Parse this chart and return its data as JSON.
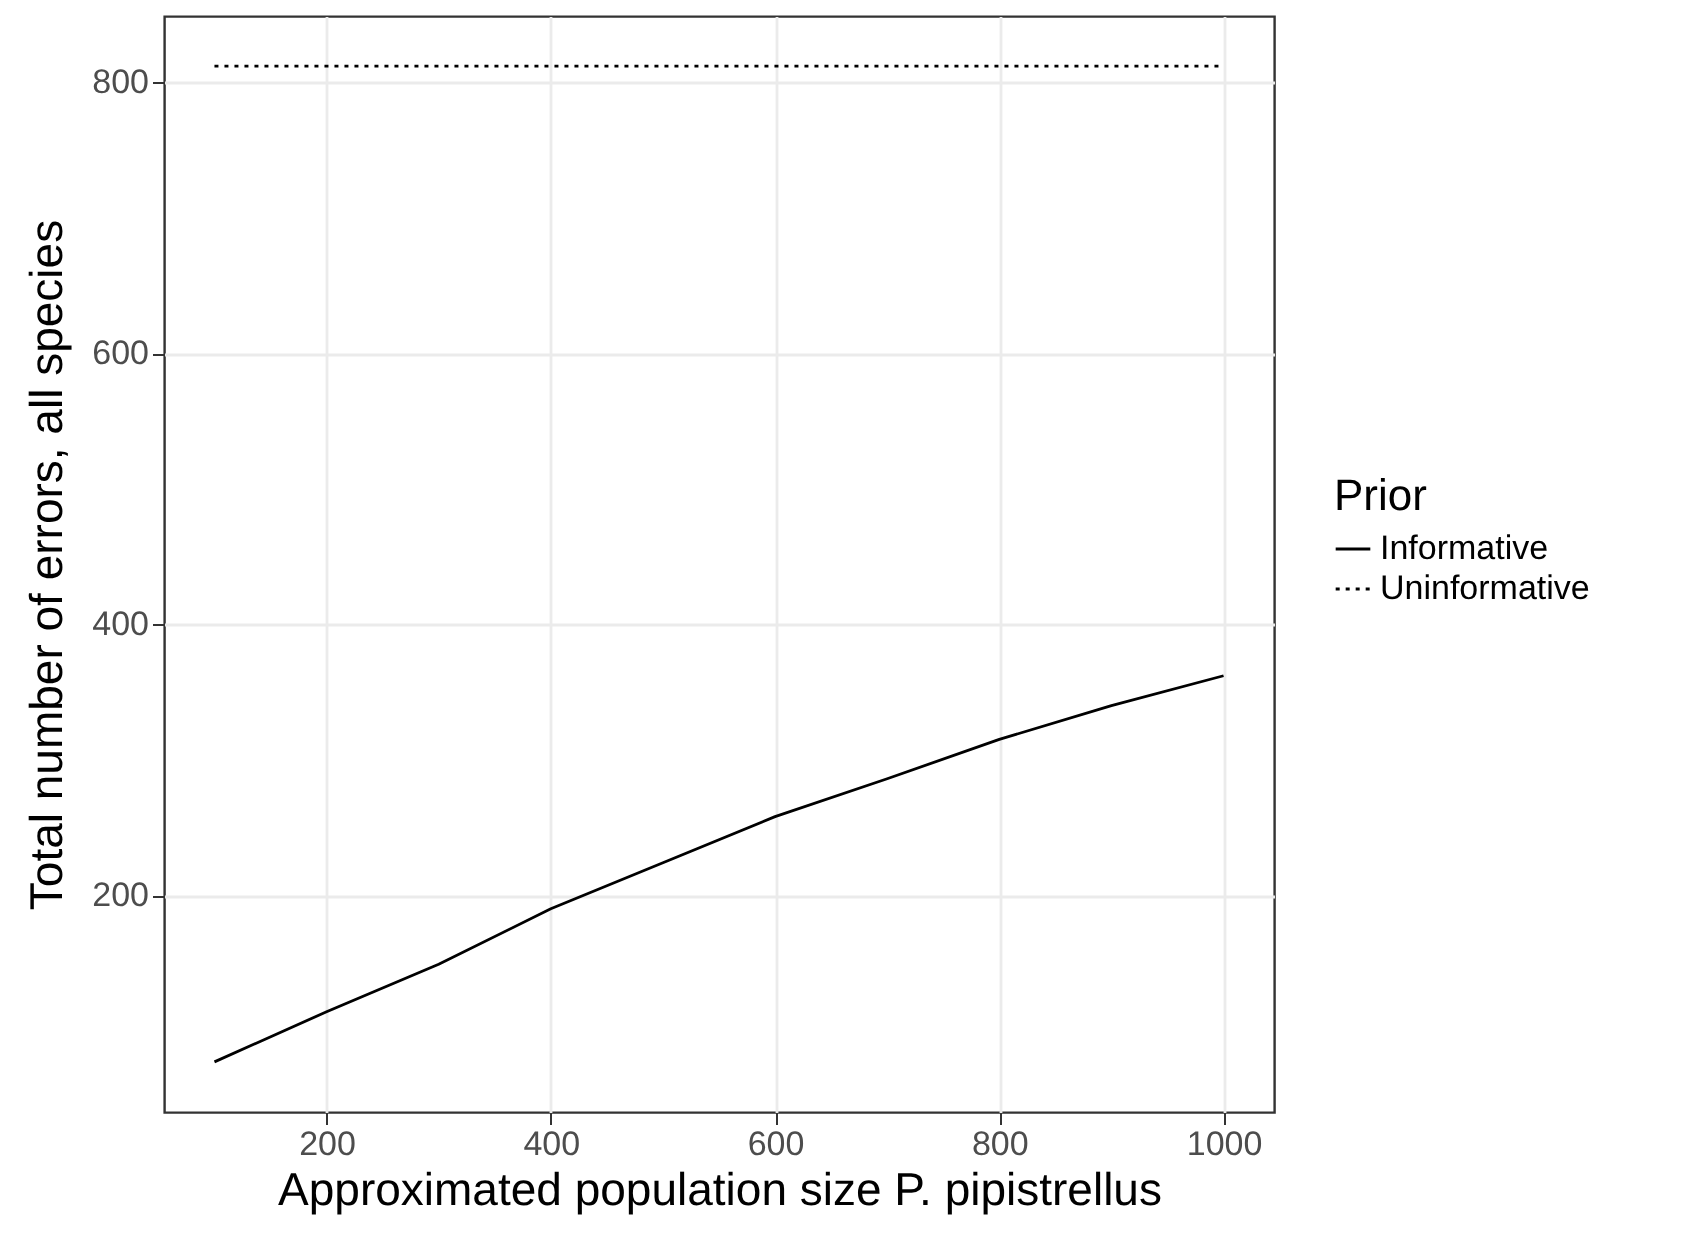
{
  "chart_data": {
    "type": "line",
    "xlabel": "Approximated population size P. pipistrellus",
    "ylabel": "Total number of errors, all species",
    "legend_title": "Prior",
    "x": [
      100,
      200,
      300,
      400,
      500,
      600,
      700,
      800,
      900,
      1000
    ],
    "series": [
      {
        "name": "Informative",
        "color": "#000000",
        "line_style": "solid",
        "values": [
          77,
          114,
          149,
          190,
          224,
          258,
          286,
          315,
          340,
          362
        ]
      },
      {
        "name": "Uninformative",
        "color": "#000000",
        "line_style": "dotted",
        "values": [
          812,
          812,
          812,
          812,
          812,
          812,
          812,
          812,
          812,
          812
        ]
      }
    ],
    "xlim": [
      55,
      1045
    ],
    "xticks": [
      200,
      400,
      600,
      800,
      1000
    ],
    "ylim": [
      40,
      849
    ],
    "yticks": [
      200,
      400,
      600,
      800
    ],
    "grid": true,
    "legend": "right",
    "marker": "none"
  }
}
